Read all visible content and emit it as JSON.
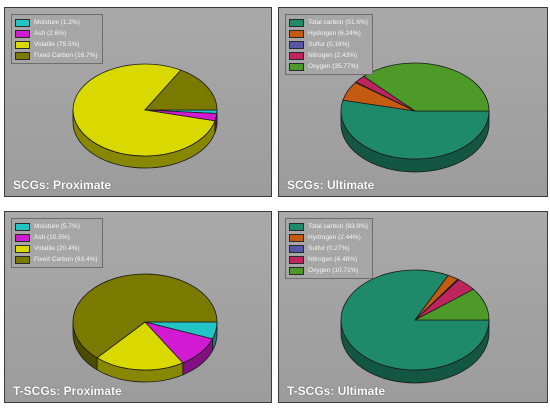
{
  "chart_data": [
    {
      "type": "pie",
      "title": "SCGs: Proximate",
      "categories": [
        "Moisture (1.2%)",
        "Ash (2.6%)",
        "Volatile (79.5%)",
        "Fixed Carbon (16.7%)"
      ],
      "values": [
        1.2,
        2.6,
        79.5,
        16.7
      ],
      "colors": [
        "#22c4c4",
        "#d11ad1",
        "#d9d900",
        "#7a7a00"
      ],
      "legend_position": "top-left",
      "start_angle": 0
    },
    {
      "type": "pie",
      "title": "SCGs: Ultimate",
      "categories": [
        "Total carbon (51.6%)",
        "Hydrogen (6.24%)",
        "Sulfur (0.16%)",
        "Nitrogen (2.43%)",
        "Oxygen (35.77%)"
      ],
      "values": [
        51.6,
        6.24,
        0.16,
        2.43,
        35.77
      ],
      "colors": [
        "#1e8a6a",
        "#c55a11",
        "#5757a8",
        "#c0245e",
        "#4e9a28"
      ],
      "legend_position": "top-left",
      "start_angle": 0
    },
    {
      "type": "pie",
      "title": "T-SCGs: Proximate",
      "categories": [
        "Moisture (5.7%)",
        "Ash (10.5%)",
        "Volatile (20.4%)",
        "Fixed Carbon (63.4%)"
      ],
      "values": [
        5.7,
        10.5,
        20.4,
        63.4
      ],
      "colors": [
        "#22c4c4",
        "#d11ad1",
        "#d9d900",
        "#7a7a00"
      ],
      "legend_position": "top-left",
      "start_angle": 0
    },
    {
      "type": "pie",
      "title": "T-SCGs: Ultimate",
      "categories": [
        "Total carbon (83.9%)",
        "Hydrogen (2.44%)",
        "Sulfur (0.27%)",
        "Nitrogen (4.48%)",
        "Oxygen (10.71%)"
      ],
      "values": [
        83.9,
        2.44,
        0.27,
        4.48,
        10.71
      ],
      "colors": [
        "#1e8a6a",
        "#c55a11",
        "#5757a8",
        "#c0245e",
        "#4e9a28"
      ],
      "legend_position": "top-left",
      "start_angle": 0
    }
  ]
}
